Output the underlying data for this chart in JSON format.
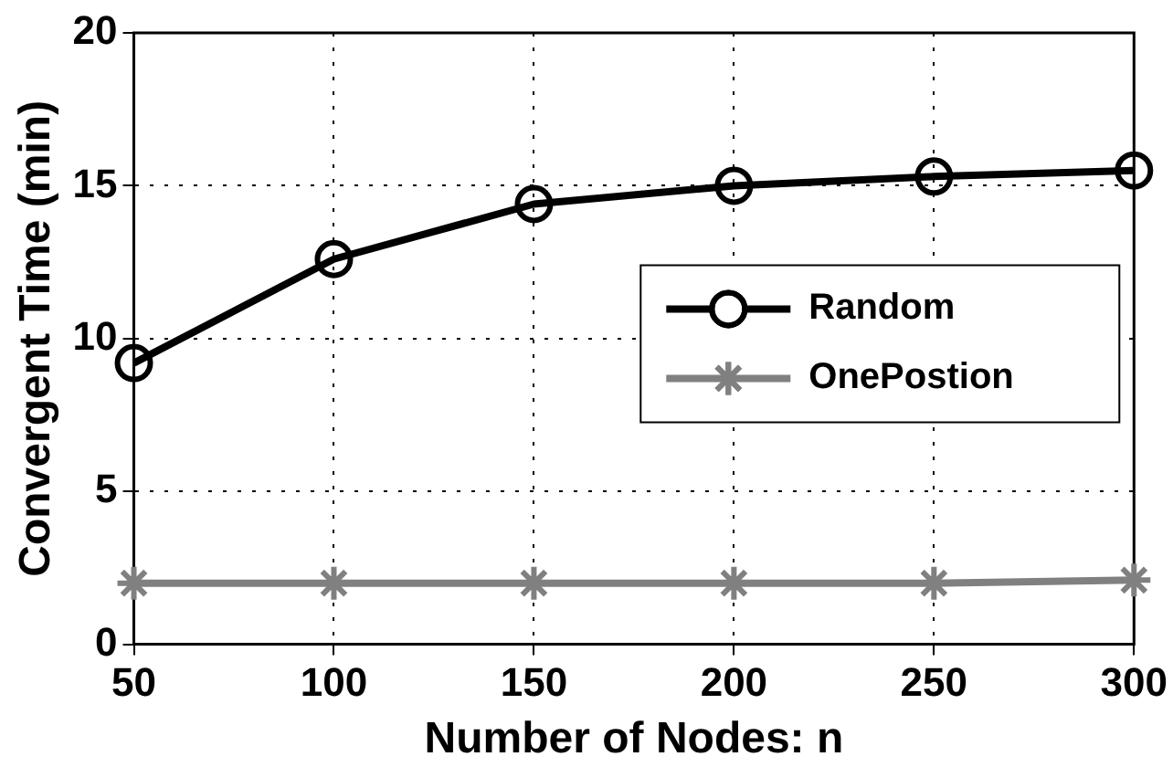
{
  "chart_data": {
    "type": "line",
    "xlabel": "Number of Nodes: n",
    "ylabel": "Convergent Time (min)",
    "x": [
      50,
      100,
      150,
      200,
      250,
      300
    ],
    "series": [
      {
        "name": "Random",
        "color": "#000000",
        "marker": "circle",
        "values": [
          9.2,
          12.6,
          14.4,
          15.0,
          15.3,
          15.5
        ]
      },
      {
        "name": "OnePostion",
        "color": "#808080",
        "marker": "cross",
        "values": [
          2.0,
          2.0,
          2.0,
          2.0,
          2.0,
          2.1
        ]
      }
    ],
    "xlim": [
      50,
      300
    ],
    "xticks": [
      50,
      100,
      150,
      200,
      250,
      300
    ],
    "ylim": [
      0,
      20
    ],
    "yticks": [
      0,
      5,
      10,
      15,
      20
    ],
    "grid": true,
    "legend": "right",
    "line_style": "solid"
  }
}
